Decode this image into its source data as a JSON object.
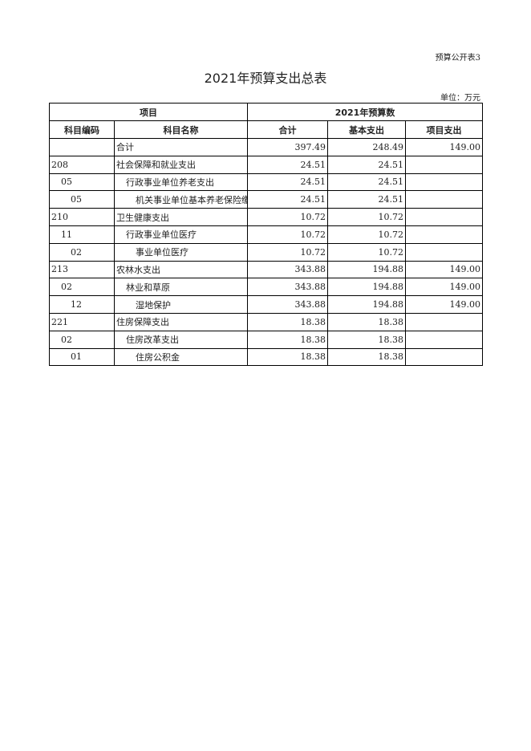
{
  "form_number": "预算公开表3",
  "title": "2021年预算支出总表",
  "unit": "单位：万元",
  "header": {
    "group_item": "项目",
    "group_budget": "2021年预算数",
    "columns": [
      "科目编码",
      "科目名称",
      "合计",
      "基本支出",
      "项目支出"
    ]
  },
  "rows": [
    {
      "code": "",
      "name": "合计",
      "total": "397.49",
      "basic": "248.49",
      "project": "149.00",
      "level": 0
    },
    {
      "code": "208",
      "name": "社会保障和就业支出",
      "total": "24.51",
      "basic": "24.51",
      "project": "",
      "level": 0
    },
    {
      "code": "05",
      "name": "行政事业单位养老支出",
      "total": "24.51",
      "basic": "24.51",
      "project": "",
      "level": 1
    },
    {
      "code": "05",
      "name": "机关事业单位基本养老保险缴费支出",
      "total": "24.51",
      "basic": "24.51",
      "project": "",
      "level": 2
    },
    {
      "code": "210",
      "name": "卫生健康支出",
      "total": "10.72",
      "basic": "10.72",
      "project": "",
      "level": 0
    },
    {
      "code": "11",
      "name": "行政事业单位医疗",
      "total": "10.72",
      "basic": "10.72",
      "project": "",
      "level": 1
    },
    {
      "code": "02",
      "name": "事业单位医疗",
      "total": "10.72",
      "basic": "10.72",
      "project": "",
      "level": 2
    },
    {
      "code": "213",
      "name": "农林水支出",
      "total": "343.88",
      "basic": "194.88",
      "project": "149.00",
      "level": 0
    },
    {
      "code": "02",
      "name": "林业和草原",
      "total": "343.88",
      "basic": "194.88",
      "project": "149.00",
      "level": 1
    },
    {
      "code": "12",
      "name": "湿地保护",
      "total": "343.88",
      "basic": "194.88",
      "project": "149.00",
      "level": 2
    },
    {
      "code": "221",
      "name": "住房保障支出",
      "total": "18.38",
      "basic": "18.38",
      "project": "",
      "level": 0
    },
    {
      "code": "02",
      "name": "住房改革支出",
      "total": "18.38",
      "basic": "18.38",
      "project": "",
      "level": 1
    },
    {
      "code": "01",
      "name": "住房公积金",
      "total": "18.38",
      "basic": "18.38",
      "project": "",
      "level": 2
    }
  ]
}
